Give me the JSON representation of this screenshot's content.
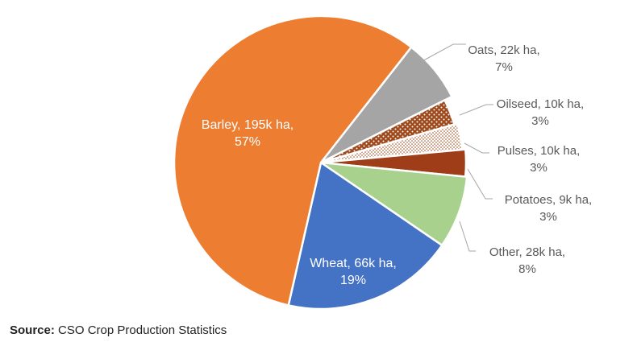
{
  "chart_data": {
    "type": "pie",
    "title": "",
    "slices": [
      {
        "name": "Oats",
        "area": "22k ha",
        "percent": 7,
        "color": "#A5A5A5",
        "pattern": "solid",
        "line1": "Oats, 22k ha,",
        "line2": "7%"
      },
      {
        "name": "Oilseed",
        "area": "10k ha",
        "percent": 3,
        "color": "#9E4A1C",
        "pattern": "white-dots-on-brown",
        "line1": "Oilseed, 10k ha,",
        "line2": "3%"
      },
      {
        "name": "Pulses",
        "area": "10k ha",
        "percent": 3,
        "color": "#9E4A1C",
        "pattern": "brown-dots-on-white",
        "line1": "Pulses, 10k ha,",
        "line2": "3%"
      },
      {
        "name": "Potatoes",
        "area": "9k ha",
        "percent": 3,
        "color": "#9E3D17",
        "pattern": "solid",
        "line1": "Potatoes, 9k ha,",
        "line2": "3%"
      },
      {
        "name": "Other",
        "area": "28k ha",
        "percent": 8,
        "color": "#A9D18E",
        "pattern": "solid",
        "line1": "Other, 28k ha,",
        "line2": "8%"
      },
      {
        "name": "Wheat",
        "area": "66k ha",
        "percent": 19,
        "color": "#4472C4",
        "pattern": "solid",
        "line1": "Wheat, 66k ha,",
        "line2": "19%"
      },
      {
        "name": "Barley",
        "area": "195k ha",
        "percent": 57,
        "color": "#ED7D31",
        "pattern": "solid",
        "line1": "Barley, 195k ha,",
        "line2": "57%"
      }
    ],
    "start_angle_deg": 38,
    "legend": "none"
  },
  "source": {
    "label": "Source:",
    "text": " CSO Crop Production Statistics"
  }
}
